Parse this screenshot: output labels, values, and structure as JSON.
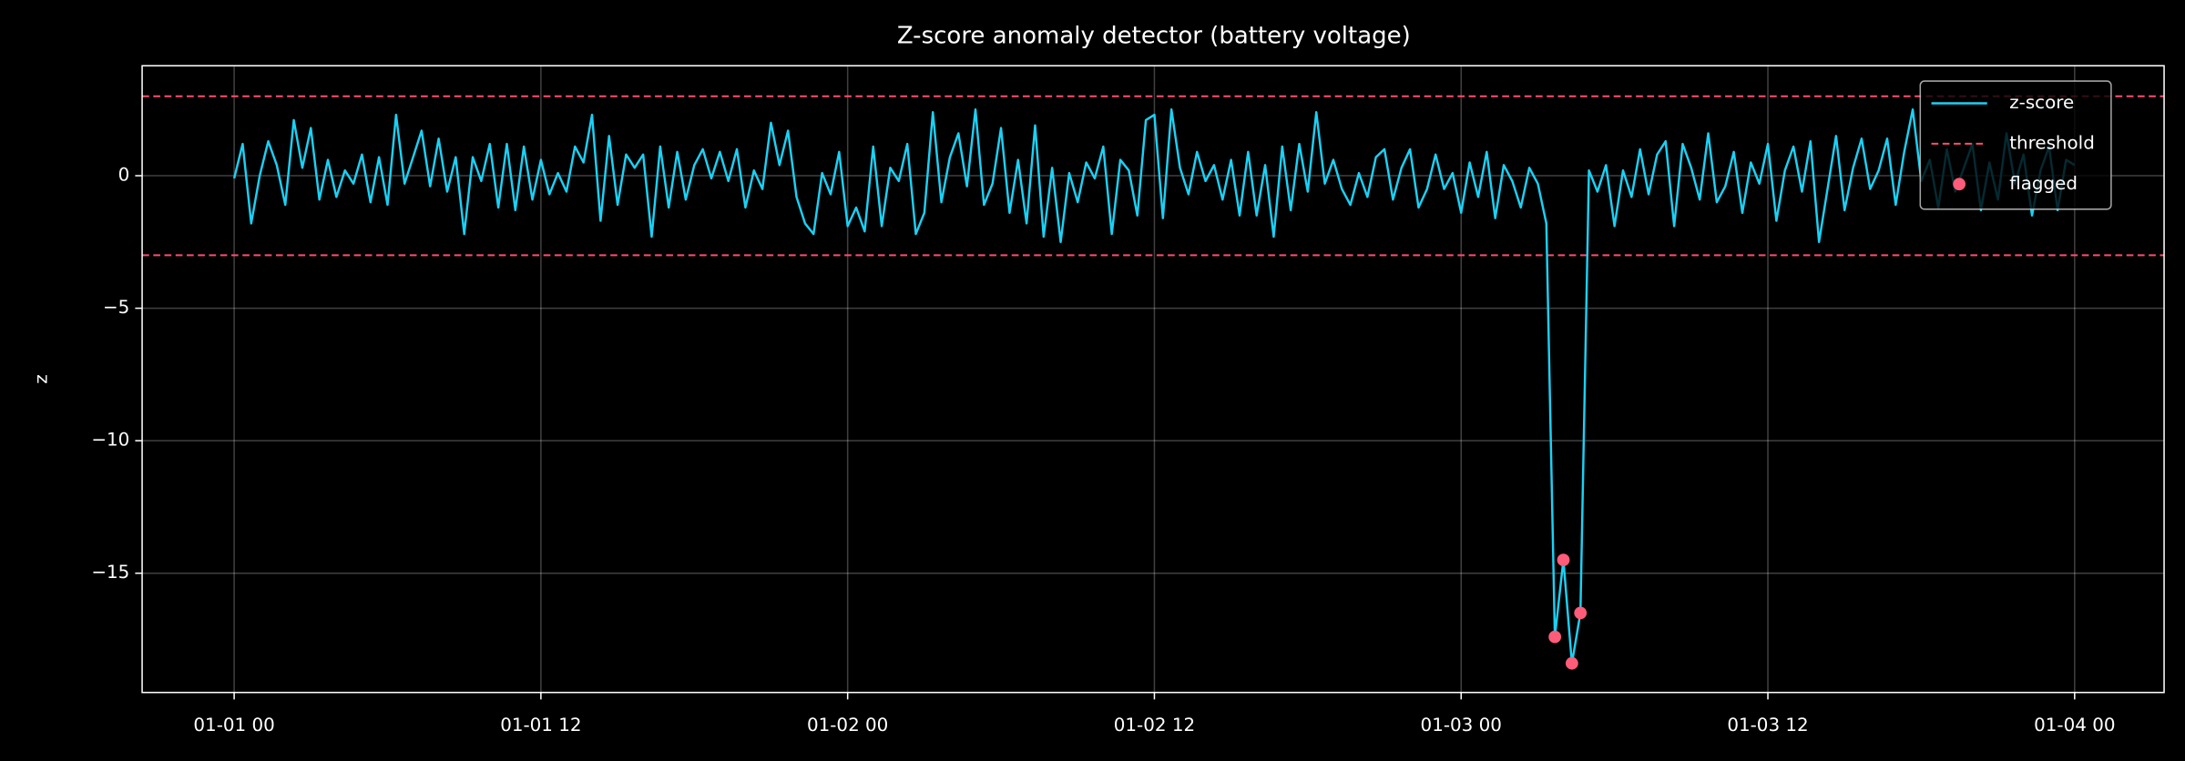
{
  "chart_data": {
    "type": "line",
    "title": "Z-score anomaly detector (battery voltage)",
    "ylabel": "z",
    "xlim": [
      "12-31 20:24",
      "01-04 03:30"
    ],
    "xticks": [
      "01-01 00",
      "01-01 12",
      "01-02 00",
      "01-02 12",
      "01-03 00",
      "01-03 12",
      "01-04 00"
    ],
    "ylim": [
      -19.5,
      4.15
    ],
    "yticks": [
      {
        "value": -15,
        "label": "−15"
      },
      {
        "value": -10,
        "label": "−10"
      },
      {
        "value": -5,
        "label": "−5"
      },
      0
    ],
    "grid": true,
    "legend": "upper right",
    "hlines": {
      "name": "threshold",
      "color": "#ff4d6d",
      "values": [
        3,
        -3
      ]
    },
    "series": [
      {
        "name": "z-score",
        "type": "line",
        "color": "#1ad1f5",
        "x": [
          "01-01 00:00",
          "01-01 00:20",
          "01-01 00:40",
          "01-01 01:00",
          "01-01 01:20",
          "01-01 01:40",
          "01-01 02:00",
          "01-01 02:20",
          "01-01 02:40",
          "01-01 03:00",
          "01-01 03:20",
          "01-01 03:40",
          "01-01 04:00",
          "01-01 04:20",
          "01-01 04:40",
          "01-01 05:00",
          "01-01 05:20",
          "01-01 05:40",
          "01-01 06:00",
          "01-01 06:20",
          "01-01 06:40",
          "01-01 07:00",
          "01-01 07:20",
          "01-01 07:40",
          "01-01 08:00",
          "01-01 08:20",
          "01-01 08:40",
          "01-01 09:00",
          "01-01 09:20",
          "01-01 09:40",
          "01-01 10:00",
          "01-01 10:20",
          "01-01 10:40",
          "01-01 11:00",
          "01-01 11:20",
          "01-01 11:40",
          "01-01 12:00",
          "01-01 12:20",
          "01-01 12:40",
          "01-01 13:00",
          "01-01 13:20",
          "01-01 13:40",
          "01-01 14:00",
          "01-01 14:20",
          "01-01 14:40",
          "01-01 15:00",
          "01-01 15:20",
          "01-01 15:40",
          "01-01 16:00",
          "01-01 16:20",
          "01-01 16:40",
          "01-01 17:00",
          "01-01 17:20",
          "01-01 17:40",
          "01-01 18:00",
          "01-01 18:20",
          "01-01 18:40",
          "01-01 19:00",
          "01-01 19:20",
          "01-01 19:40",
          "01-01 20:00",
          "01-01 20:20",
          "01-01 20:40",
          "01-01 21:00",
          "01-01 21:20",
          "01-01 21:40",
          "01-01 22:00",
          "01-01 22:20",
          "01-01 22:40",
          "01-01 23:00",
          "01-01 23:20",
          "01-01 23:40",
          "01-02 00:00",
          "01-02 00:20",
          "01-02 00:40",
          "01-02 01:00",
          "01-02 01:20",
          "01-02 01:40",
          "01-02 02:00",
          "01-02 02:20",
          "01-02 02:40",
          "01-02 03:00",
          "01-02 03:20",
          "01-02 03:40",
          "01-02 04:00",
          "01-02 04:20",
          "01-02 04:40",
          "01-02 05:00",
          "01-02 05:20",
          "01-02 05:40",
          "01-02 06:00",
          "01-02 06:20",
          "01-02 06:40",
          "01-02 07:00",
          "01-02 07:20",
          "01-02 07:40",
          "01-02 08:00",
          "01-02 08:20",
          "01-02 08:40",
          "01-02 09:00",
          "01-02 09:20",
          "01-02 09:40",
          "01-02 10:00",
          "01-02 10:20",
          "01-02 10:40",
          "01-02 11:00",
          "01-02 11:20",
          "01-02 11:40",
          "01-02 12:00",
          "01-02 12:20",
          "01-02 12:40",
          "01-02 13:00",
          "01-02 13:20",
          "01-02 13:40",
          "01-02 14:00",
          "01-02 14:20",
          "01-02 14:40",
          "01-02 15:00",
          "01-02 15:20",
          "01-02 15:40",
          "01-02 16:00",
          "01-02 16:20",
          "01-02 16:40",
          "01-02 17:00",
          "01-02 17:20",
          "01-02 17:40",
          "01-02 18:00",
          "01-02 18:20",
          "01-02 18:40",
          "01-02 19:00",
          "01-02 19:20",
          "01-02 19:40",
          "01-02 20:00",
          "01-02 20:20",
          "01-02 20:40",
          "01-02 21:00",
          "01-02 21:20",
          "01-02 21:40",
          "01-02 22:00",
          "01-02 22:20",
          "01-02 22:40",
          "01-02 23:00",
          "01-02 23:20",
          "01-02 23:40",
          "01-03 00:00",
          "01-03 00:20",
          "01-03 00:40",
          "01-03 01:00",
          "01-03 01:20",
          "01-03 01:40",
          "01-03 02:00",
          "01-03 02:20",
          "01-03 02:40",
          "01-03 03:00",
          "01-03 03:20",
          "01-03 03:40",
          "01-03 04:00",
          "01-03 04:20",
          "01-03 04:40",
          "01-03 05:00",
          "01-03 05:20",
          "01-03 05:40",
          "01-03 06:00",
          "01-03 06:20",
          "01-03 06:40",
          "01-03 07:00",
          "01-03 07:20",
          "01-03 07:40",
          "01-03 08:00",
          "01-03 08:20",
          "01-03 08:40",
          "01-03 09:00",
          "01-03 09:20",
          "01-03 09:40",
          "01-03 10:00",
          "01-03 10:20",
          "01-03 10:40",
          "01-03 11:00",
          "01-03 11:20",
          "01-03 11:40",
          "01-03 12:00",
          "01-03 12:20",
          "01-03 12:40",
          "01-03 13:00",
          "01-03 13:20",
          "01-03 13:40",
          "01-03 14:00",
          "01-03 14:20",
          "01-03 14:40",
          "01-03 15:00",
          "01-03 15:20",
          "01-03 15:40",
          "01-03 16:00",
          "01-03 16:20",
          "01-03 16:40",
          "01-03 17:00",
          "01-03 17:20",
          "01-03 17:40",
          "01-03 18:00",
          "01-03 18:20",
          "01-03 18:40",
          "01-03 19:00",
          "01-03 19:20",
          "01-03 19:40",
          "01-03 20:00",
          "01-03 20:20",
          "01-03 20:40",
          "01-03 21:00",
          "01-03 21:20",
          "01-03 21:40",
          "01-03 22:00",
          "01-03 22:20",
          "01-03 22:40",
          "01-03 23:00",
          "01-03 23:20",
          "01-03 23:40",
          "01-04 00:00"
        ],
        "values": [
          -0.1,
          1.2,
          -1.8,
          0.0,
          1.3,
          0.4,
          -1.1,
          2.1,
          0.3,
          1.8,
          -0.9,
          0.6,
          -0.8,
          0.2,
          -0.3,
          0.8,
          -1.0,
          0.7,
          -1.1,
          2.3,
          -0.3,
          0.7,
          1.7,
          -0.4,
          1.4,
          -0.6,
          0.7,
          -2.2,
          0.7,
          -0.2,
          1.2,
          -1.2,
          1.2,
          -1.3,
          1.1,
          -0.9,
          0.6,
          -0.7,
          0.1,
          -0.6,
          1.1,
          0.5,
          2.3,
          -1.7,
          1.5,
          -1.1,
          0.8,
          0.3,
          0.8,
          -2.3,
          1.1,
          -1.2,
          0.9,
          -0.9,
          0.4,
          1.0,
          -0.1,
          0.9,
          -0.2,
          1.0,
          -1.2,
          0.2,
          -0.5,
          2.0,
          0.4,
          1.7,
          -0.8,
          -1.8,
          -2.2,
          0.1,
          -0.7,
          0.9,
          -1.9,
          -1.2,
          -2.1,
          1.1,
          -1.9,
          0.3,
          -0.2,
          1.2,
          -2.2,
          -1.4,
          2.4,
          -1.0,
          0.7,
          1.6,
          -0.4,
          2.5,
          -1.1,
          -0.3,
          1.8,
          -1.4,
          0.6,
          -1.8,
          1.9,
          -2.3,
          0.3,
          -2.5,
          0.1,
          -1.0,
          0.5,
          -0.1,
          1.1,
          -2.2,
          0.6,
          0.2,
          -1.5,
          2.1,
          2.3,
          -1.6,
          2.5,
          0.3,
          -0.7,
          0.9,
          -0.2,
          0.4,
          -0.9,
          0.6,
          -1.5,
          0.9,
          -1.5,
          0.4,
          -2.3,
          1.1,
          -1.3,
          1.2,
          -0.6,
          2.4,
          -0.3,
          0.6,
          -0.5,
          -1.1,
          0.1,
          -0.8,
          0.7,
          1.0,
          -0.9,
          0.3,
          1.0,
          -1.2,
          -0.5,
          0.8,
          -0.5,
          0.1,
          -1.4,
          0.5,
          -0.8,
          0.9,
          -1.6,
          0.4,
          -0.2,
          -1.2,
          0.3,
          -0.3,
          -1.8,
          -17.4,
          -14.5,
          -18.4,
          -16.5,
          0.2,
          -0.6,
          0.4,
          -1.9,
          0.2,
          -0.8,
          1.0,
          -0.7,
          0.8,
          1.3,
          -1.9,
          1.2,
          0.3,
          -0.9,
          1.6,
          -1.0,
          -0.4,
          0.9,
          -1.4,
          0.5,
          -0.3,
          1.2,
          -1.7,
          0.2,
          1.1,
          -0.6,
          1.3,
          -2.5,
          -0.5,
          1.5,
          -1.3,
          0.3,
          1.4,
          -0.5,
          0.2,
          1.4,
          -1.1,
          0.9,
          2.5,
          -0.2,
          0.6,
          -1.2,
          1.0,
          -0.6,
          0.3,
          1.2,
          -1.3,
          0.5,
          -0.9,
          1.6,
          -0.3,
          0.8,
          -1.5,
          0.2,
          1.1,
          -1.3,
          0.6,
          0.4
        ]
      },
      {
        "name": "flagged",
        "type": "scatter",
        "color": "#ff5c7a",
        "x": [
          "01-03 03:40",
          "01-03 04:00",
          "01-03 04:20",
          "01-03 04:40"
        ],
        "values": [
          -17.4,
          -14.5,
          -18.4,
          -16.5
        ]
      }
    ]
  }
}
